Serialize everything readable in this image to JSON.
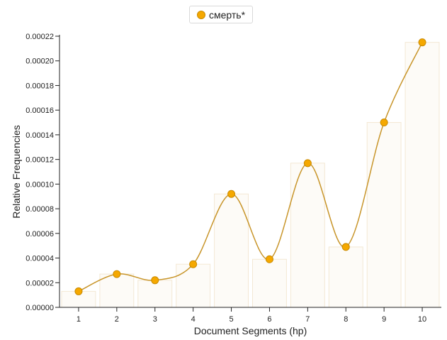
{
  "legend": {
    "label": "смерть*",
    "color": "#f5a800"
  },
  "chart_data": {
    "type": "line",
    "title": "",
    "xlabel": "Document Segments (hp)",
    "ylabel": "Relative Frequencies",
    "categories": [
      "1",
      "2",
      "3",
      "4",
      "5",
      "6",
      "7",
      "8",
      "9",
      "10"
    ],
    "series": [
      {
        "name": "смерть*",
        "values": [
          1.3e-05,
          2.7e-05,
          2.2e-05,
          3.5e-05,
          9.2e-05,
          3.9e-05,
          0.000117,
          4.9e-05,
          0.00015,
          0.000215
        ]
      }
    ],
    "bars_shown": true,
    "ylim": [
      0,
      0.00022
    ],
    "yticks": [
      "0.00000",
      "0.00002",
      "0.00004",
      "0.00006",
      "0.00008",
      "0.00010",
      "0.00012",
      "0.00014",
      "0.00016",
      "0.00018",
      "0.00020",
      "0.00022"
    ],
    "grid": false,
    "legend_position": "top-center",
    "colors": {
      "line": "#c8952a",
      "marker": "#f5a800",
      "marker_stroke": "#c98a00",
      "bar_fill": "#fdfbf7",
      "bar_stroke": "#f3e8d4"
    }
  }
}
